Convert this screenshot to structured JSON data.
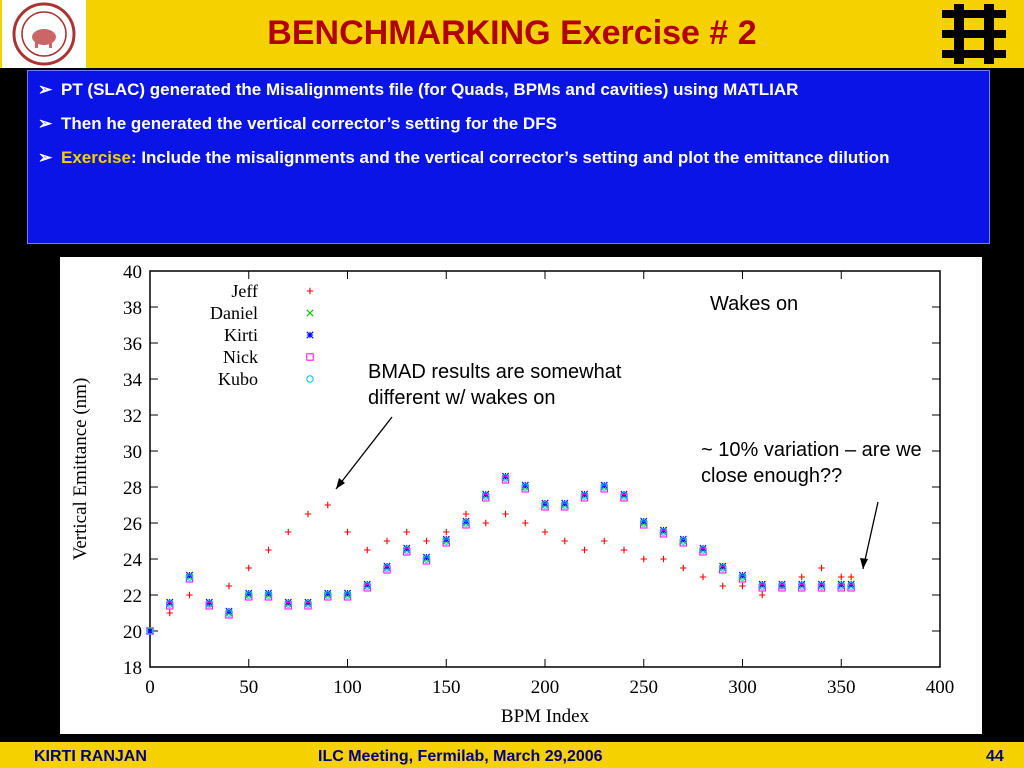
{
  "slide": {
    "title": "BENCHMARKING Exercise # 2",
    "bullets": [
      {
        "prefix": "",
        "highlight": "",
        "text": "PT (SLAC) generated the Misalignments file (for Quads, BPMs and cavities) using MATLIAR"
      },
      {
        "prefix": "",
        "highlight": "",
        "text": "Then he generated the vertical corrector’s setting for the DFS"
      },
      {
        "prefix": "",
        "highlight": "Exercise",
        "text": ": Include the misalignments and the vertical corrector’s setting and plot the emittance dilution"
      }
    ],
    "annotations": {
      "wakes_on": "Wakes on",
      "bmad_note": "BMAD results are somewhat different w/ wakes on",
      "variation_note": "~ 10% variation – are we close enough??"
    },
    "footer": {
      "author": "KIRTI  RANJAN",
      "meeting": "ILC Meeting, Fermilab, March 29,2006",
      "page": "44"
    }
  },
  "colors": {
    "header": "#f5d100",
    "title": "#b00000",
    "bullet_box": "#0a14e6",
    "footer_text": "#000080"
  },
  "chart_data": {
    "type": "scatter",
    "xlabel": "BPM Index",
    "ylabel": "Vertical Emittance (nm)",
    "xlim": [
      0,
      400
    ],
    "ylim": [
      18,
      40
    ],
    "xticks": [
      "0",
      "50",
      "100",
      "150",
      "200",
      "250",
      "300",
      "350",
      "400"
    ],
    "yticks": [
      "18",
      "20",
      "22",
      "24",
      "26",
      "28",
      "30",
      "32",
      "34",
      "36",
      "38",
      "40"
    ],
    "legend_position": "top-left",
    "series": [
      {
        "name": "Jeff",
        "marker": "plus",
        "color": "#ff0000",
        "x": [
          0,
          10,
          20,
          30,
          40,
          50,
          60,
          70,
          80,
          90,
          100,
          110,
          120,
          130,
          140,
          150,
          160,
          170,
          180,
          190,
          200,
          210,
          220,
          230,
          240,
          250,
          260,
          270,
          280,
          290,
          300,
          310,
          320,
          330,
          340,
          350,
          355
        ],
        "y": [
          20.0,
          21.0,
          22.0,
          21.5,
          22.5,
          23.5,
          24.5,
          25.5,
          26.5,
          27.0,
          25.5,
          24.5,
          25.0,
          25.5,
          25.0,
          25.5,
          26.5,
          26.0,
          26.5,
          26.0,
          25.5,
          25.0,
          24.5,
          25.0,
          24.5,
          24.0,
          24.0,
          23.5,
          23.0,
          22.5,
          22.5,
          22.0,
          22.5,
          23.0,
          23.5,
          23.0,
          23.0
        ]
      },
      {
        "name": "Daniel",
        "marker": "x",
        "color": "#00cc00",
        "x": [
          0,
          10,
          20,
          30,
          40,
          50,
          60,
          70,
          80,
          90,
          100,
          110,
          120,
          130,
          140,
          150,
          160,
          170,
          180,
          190,
          200,
          210,
          220,
          230,
          240,
          250,
          260,
          270,
          280,
          290,
          300,
          310,
          320,
          330,
          340,
          350,
          355
        ],
        "y": [
          20.0,
          21.5,
          23.0,
          21.5,
          21.0,
          22.0,
          22.0,
          21.5,
          21.5,
          22.0,
          22.0,
          22.5,
          23.5,
          24.5,
          24.0,
          25.0,
          26.0,
          27.5,
          28.5,
          28.0,
          27.0,
          27.0,
          27.5,
          28.0,
          27.5,
          26.0,
          25.5,
          25.0,
          24.5,
          23.5,
          23.0,
          22.5,
          22.5,
          22.5,
          22.5,
          22.5,
          22.5
        ]
      },
      {
        "name": "Kirti",
        "marker": "star",
        "color": "#0000ff",
        "x": [
          0,
          10,
          20,
          30,
          40,
          50,
          60,
          70,
          80,
          90,
          100,
          110,
          120,
          130,
          140,
          150,
          160,
          170,
          180,
          190,
          200,
          210,
          220,
          230,
          240,
          250,
          260,
          270,
          280,
          290,
          300,
          310,
          320,
          330,
          340,
          350,
          355
        ],
        "y": [
          20.0,
          21.6,
          23.1,
          21.6,
          21.1,
          22.1,
          22.1,
          21.6,
          21.6,
          22.1,
          22.1,
          22.6,
          23.6,
          24.6,
          24.1,
          25.1,
          26.1,
          27.6,
          28.6,
          28.1,
          27.1,
          27.1,
          27.6,
          28.1,
          27.6,
          26.1,
          25.6,
          25.1,
          24.6,
          23.6,
          23.1,
          22.6,
          22.6,
          22.6,
          22.6,
          22.6,
          22.6
        ]
      },
      {
        "name": "Nick",
        "marker": "square",
        "color": "#ff00ff",
        "x": [
          0,
          10,
          20,
          30,
          40,
          50,
          60,
          70,
          80,
          90,
          100,
          110,
          120,
          130,
          140,
          150,
          160,
          170,
          180,
          190,
          200,
          210,
          220,
          230,
          240,
          250,
          260,
          270,
          280,
          290,
          300,
          310,
          320,
          330,
          340,
          350,
          355
        ],
        "y": [
          20.0,
          21.4,
          22.9,
          21.4,
          20.9,
          21.9,
          21.9,
          21.4,
          21.4,
          21.9,
          21.9,
          22.4,
          23.4,
          24.4,
          23.9,
          24.9,
          25.9,
          27.4,
          28.4,
          27.9,
          26.9,
          26.9,
          27.4,
          27.9,
          27.4,
          25.9,
          25.4,
          24.9,
          24.4,
          23.4,
          22.9,
          22.4,
          22.4,
          22.4,
          22.4,
          22.4,
          22.4
        ]
      },
      {
        "name": "Kubo",
        "marker": "circle",
        "color": "#00c0ff",
        "x": [
          0,
          10,
          20,
          30,
          40,
          50,
          60,
          70,
          80,
          90,
          100,
          110,
          120,
          130,
          140,
          150,
          160,
          170,
          180,
          190,
          200,
          210,
          220,
          230,
          240,
          250,
          260,
          270,
          280,
          290,
          300,
          310,
          320,
          330,
          340,
          350,
          355
        ],
        "y": [
          20.0,
          21.5,
          23.0,
          21.5,
          21.0,
          22.0,
          22.0,
          21.5,
          21.5,
          22.0,
          22.0,
          22.5,
          23.5,
          24.5,
          24.0,
          25.0,
          26.0,
          27.5,
          28.5,
          28.0,
          27.0,
          27.0,
          27.5,
          28.0,
          27.5,
          26.0,
          25.5,
          25.0,
          24.5,
          23.5,
          23.0,
          22.5,
          22.5,
          22.5,
          22.5,
          22.5,
          22.5
        ]
      }
    ]
  }
}
